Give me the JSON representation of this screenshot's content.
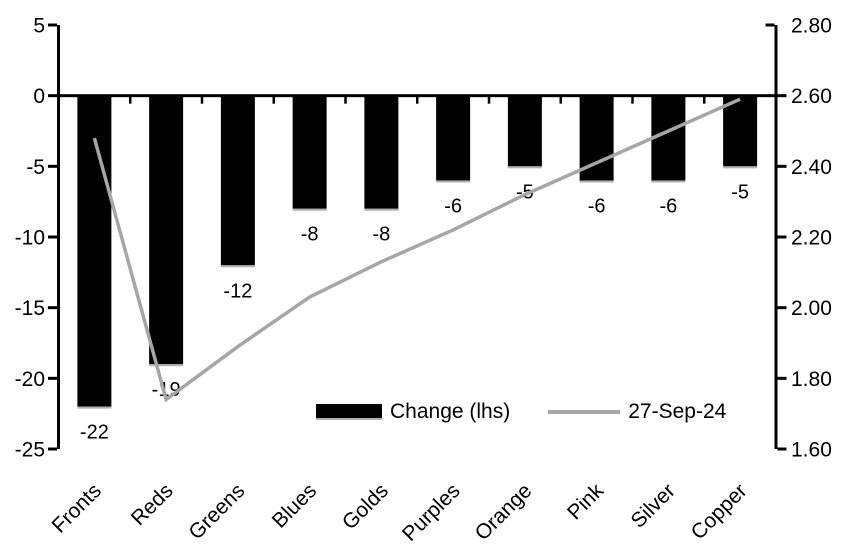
{
  "chart_data": {
    "type": "bar+line combo",
    "title": "",
    "categories": [
      "Fronts",
      "Reds",
      "Greens",
      "Blues",
      "Golds",
      "Purples",
      "Orange",
      "Pink",
      "Silver",
      "Copper"
    ],
    "series": [
      {
        "name": "Change (lhs)",
        "type": "bar",
        "axis": "left",
        "color": "#000000",
        "values": [
          -22,
          -19,
          -12,
          -8,
          -8,
          -6,
          -5,
          -6,
          -6,
          -5
        ],
        "data_labels": [
          "-22",
          "-19",
          "-12",
          "-8",
          "-8",
          "-6",
          "-5",
          "-6",
          "-6",
          "-5"
        ]
      },
      {
        "name": "27-Sep-24",
        "type": "line",
        "axis": "right",
        "color": "#a6a6a6",
        "values": [
          2.48,
          1.74,
          1.89,
          2.03,
          2.13,
          2.22,
          2.32,
          2.41,
          2.5,
          2.59
        ]
      }
    ],
    "left_axis": {
      "min": -25,
      "max": 5,
      "step": 5,
      "tick_labels": [
        "5",
        "0",
        "-5",
        "-10",
        "-15",
        "-20",
        "-25"
      ]
    },
    "right_axis": {
      "min": 1.6,
      "max": 2.8,
      "step": 0.2,
      "tick_labels": [
        "2.80",
        "2.60",
        "2.40",
        "2.20",
        "2.00",
        "1.80",
        "1.60"
      ]
    },
    "grid": false,
    "legend_position": "inside-bottom-center",
    "category_label_rotation_deg": -45,
    "colors": {
      "bar": "#000000",
      "line": "#a6a6a6",
      "axis": "#000000",
      "background": "#ffffff",
      "bar_bottom_edge": "#b0b0b0"
    }
  }
}
